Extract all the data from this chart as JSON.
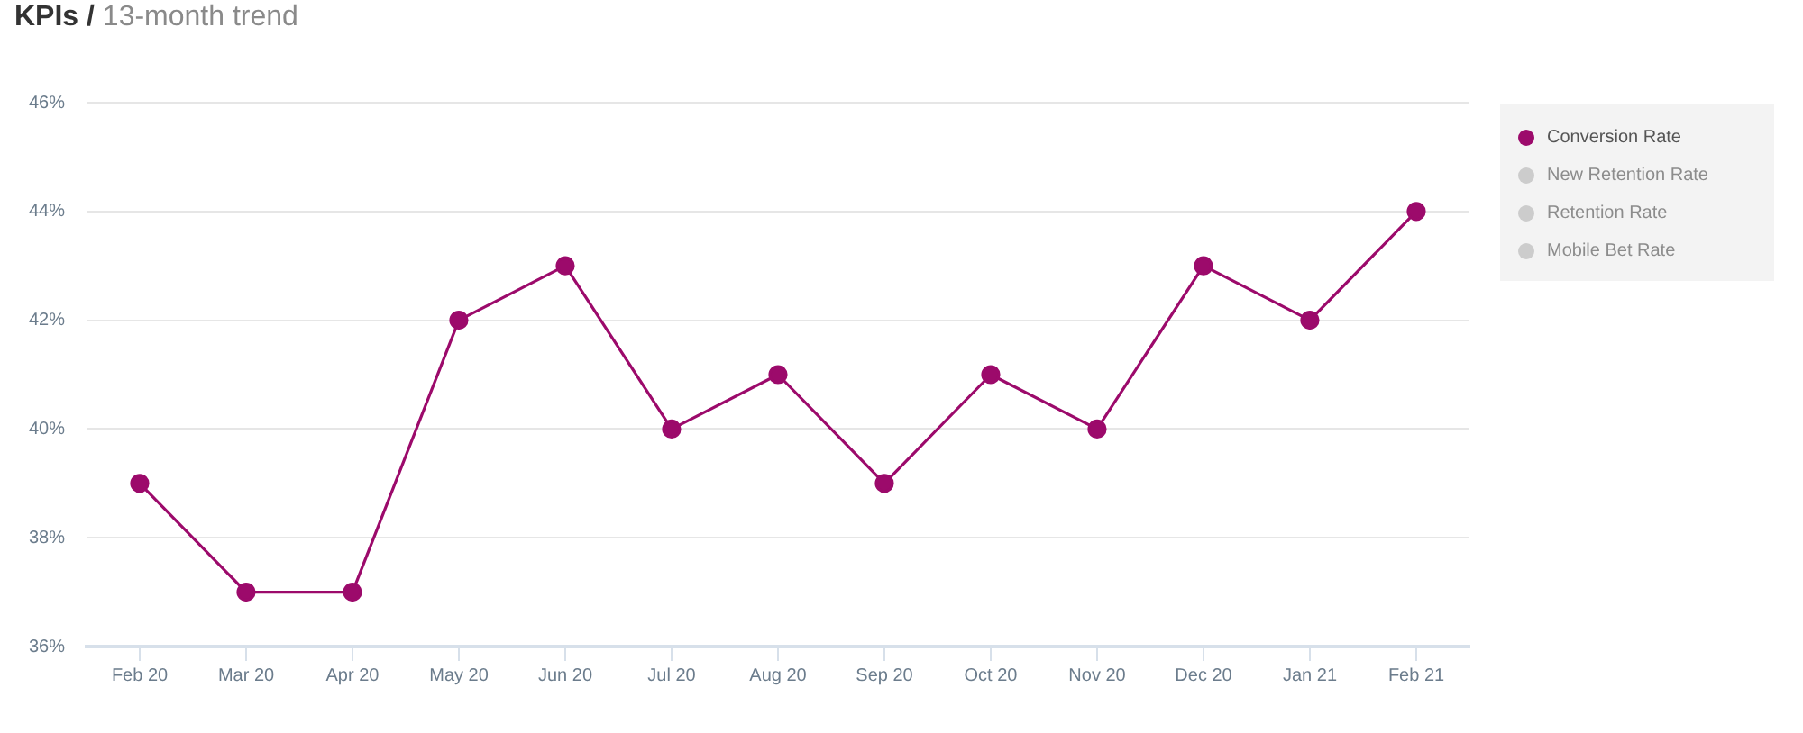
{
  "chart_data": {
    "type": "line",
    "title": "KPIs /",
    "subtitle": "13-month trend",
    "categories": [
      "Feb 20",
      "Mar 20",
      "Apr 20",
      "May 20",
      "Jun 20",
      "Jul 20",
      "Aug 20",
      "Sep 20",
      "Oct 20",
      "Nov 20",
      "Dec 20",
      "Jan 21",
      "Feb 21"
    ],
    "series": [
      {
        "name": "Conversion Rate",
        "color": "#9c0a6b",
        "values": [
          39,
          37,
          37,
          42,
          43,
          40,
          41,
          39,
          41,
          40,
          43,
          42,
          44
        ]
      },
      {
        "name": "New Retention Rate",
        "color": "#cccccc",
        "values": [
          null,
          null,
          null,
          null,
          null,
          null,
          null,
          null,
          null,
          null,
          null,
          null,
          null
        ]
      },
      {
        "name": "Retention Rate",
        "color": "#cccccc",
        "values": [
          null,
          null,
          null,
          null,
          null,
          null,
          null,
          null,
          null,
          null,
          null,
          null,
          null
        ]
      },
      {
        "name": "Mobile Bet Rate",
        "color": "#cccccc",
        "values": [
          null,
          null,
          null,
          null,
          null,
          null,
          null,
          null,
          null,
          null,
          null,
          null,
          null
        ]
      }
    ],
    "ylim": [
      36,
      46
    ],
    "yticks": [
      {
        "value": 36,
        "label": "36%"
      },
      {
        "value": 38,
        "label": "38%"
      },
      {
        "value": 40,
        "label": "40%"
      },
      {
        "value": 42,
        "label": "42%"
      },
      {
        "value": 44,
        "label": "44%"
      },
      {
        "value": 46,
        "label": "46%"
      }
    ],
    "grid": "y",
    "legend": "top right",
    "marker": "circle",
    "line_style": "solid"
  }
}
